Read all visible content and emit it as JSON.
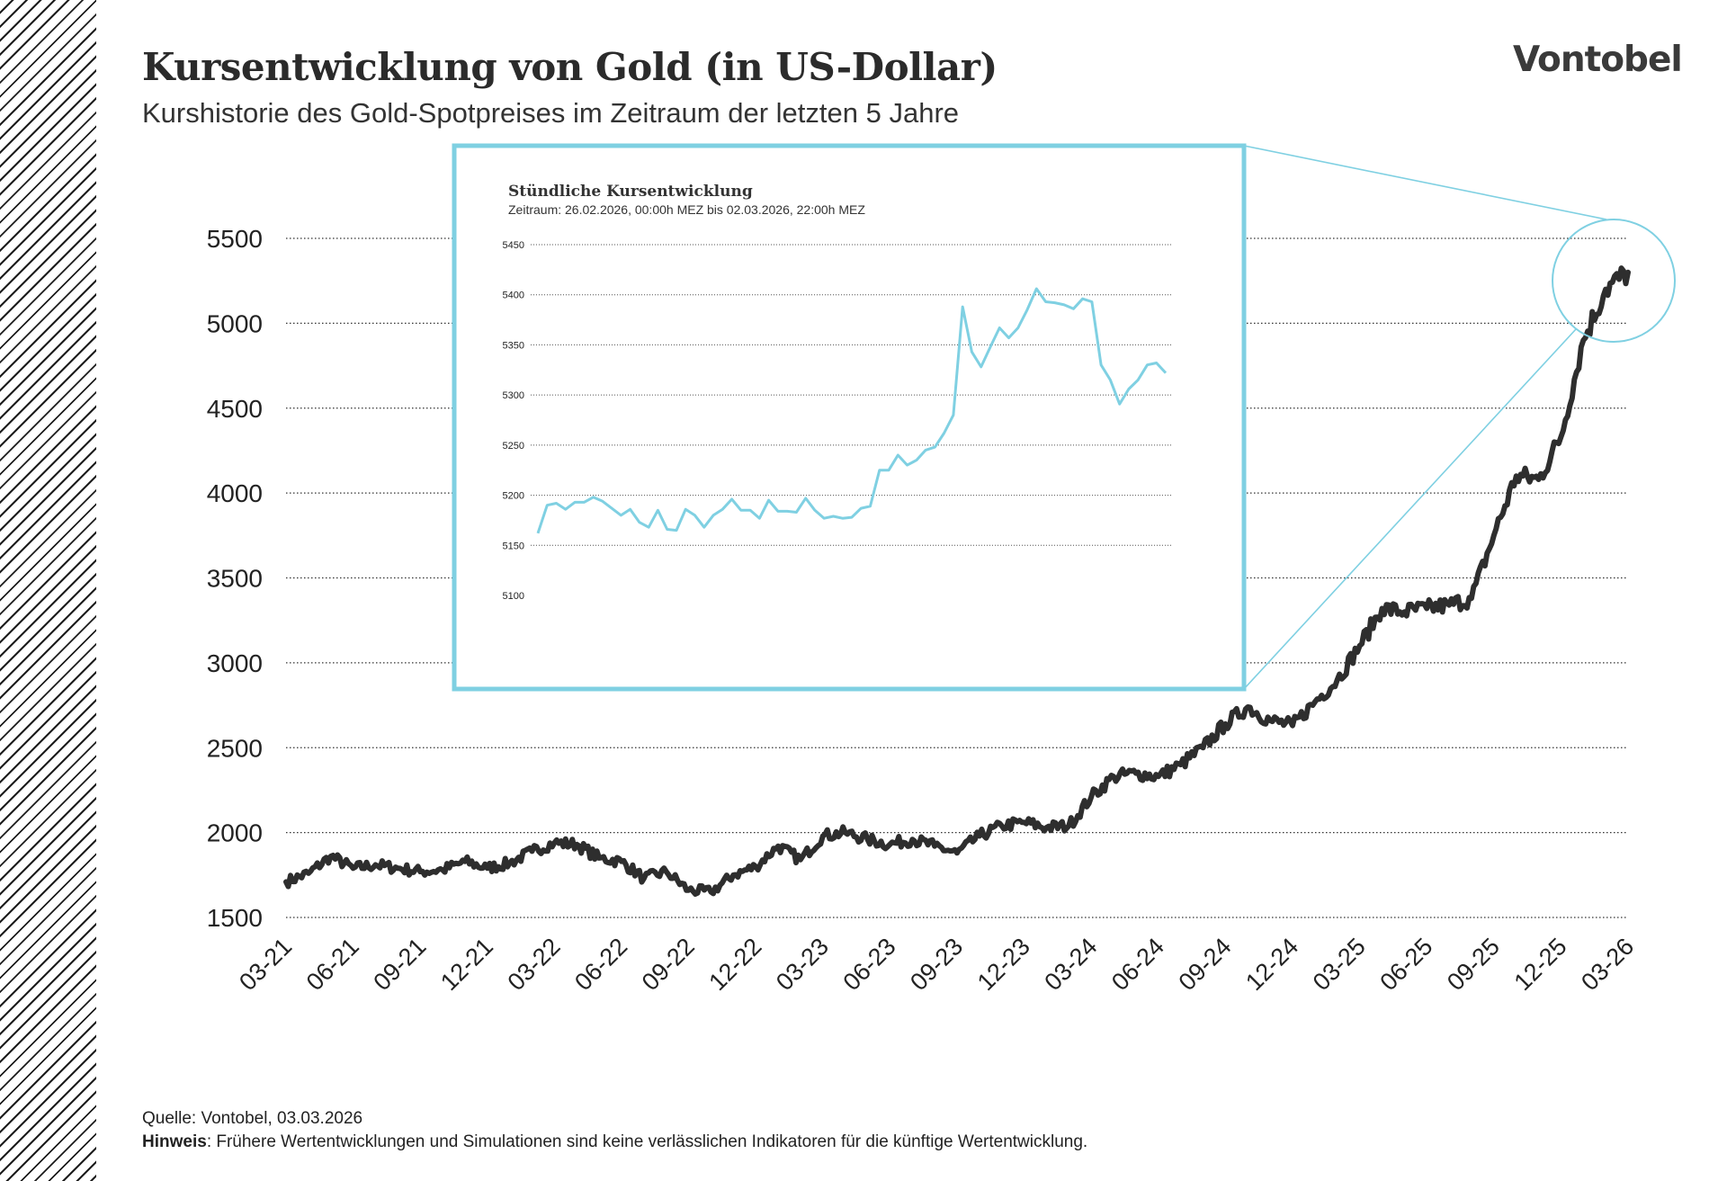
{
  "header": {
    "title": "Kursentwicklung von Gold (in US-Dollar)",
    "subtitle": "Kurshistorie des Gold-Spotpreises im Zeitraum der letzten 5 Jahre",
    "logo": "Vontobel"
  },
  "footer": {
    "source": "Quelle: Vontobel, 03.03.2026",
    "note_label": "Hinweis",
    "note_text": ": Frühere Wertentwicklungen und Simulationen sind keine verlässlichen Indikatoren für die künftige Wertentwicklung."
  },
  "colors": {
    "line": "#2e2e2e",
    "accent": "#7fd0e2",
    "grid": "#333333"
  },
  "chart_data": [
    {
      "type": "line",
      "title": "Kursentwicklung von Gold (in US-Dollar)",
      "subtitle": "Kurshistorie des Gold-Spotpreises im Zeitraum der letzten 5 Jahre",
      "xlabel": "",
      "ylabel": "",
      "ylim": [
        1500,
        5500
      ],
      "yticks": [
        1500,
        2000,
        2500,
        3000,
        3500,
        4000,
        4500,
        5000,
        5500
      ],
      "xticks": [
        "03-21",
        "06-21",
        "09-21",
        "12-21",
        "03-22",
        "06-22",
        "09-22",
        "12-22",
        "03-23",
        "06-23",
        "09-23",
        "12-23",
        "03-24",
        "06-24",
        "09-24",
        "12-24",
        "03-25",
        "06-25",
        "09-25",
        "12-25",
        "03-26"
      ],
      "grid": "horizontal dotted",
      "series": [
        {
          "x": [
            "03-21",
            "04-21",
            "05-21",
            "06-21",
            "07-21",
            "08-21",
            "09-21",
            "10-21",
            "11-21",
            "12-21",
            "01-22",
            "02-22",
            "03-22",
            "04-22",
            "05-22",
            "06-22",
            "07-22",
            "08-22",
            "09-22",
            "10-22",
            "11-22",
            "12-22",
            "01-23",
            "02-23",
            "03-23",
            "04-23",
            "05-23",
            "06-23",
            "07-23",
            "08-23",
            "09-23",
            "10-23",
            "11-23",
            "12-23",
            "01-24",
            "02-24",
            "03-24",
            "04-24",
            "05-24",
            "06-24",
            "07-24",
            "08-24",
            "09-24",
            "10-24",
            "11-24",
            "12-24",
            "01-25",
            "02-25",
            "03-25",
            "04-25",
            "05-25",
            "06-25",
            "07-25",
            "08-25",
            "09-25",
            "10-25",
            "11-25",
            "12-25",
            "01-26",
            "02-26",
            "03-26"
          ],
          "values": [
            1710,
            1760,
            1860,
            1790,
            1810,
            1790,
            1770,
            1780,
            1830,
            1790,
            1820,
            1890,
            1940,
            1930,
            1850,
            1830,
            1730,
            1770,
            1660,
            1650,
            1750,
            1800,
            1920,
            1840,
            1980,
            2000,
            1960,
            1930,
            1960,
            1920,
            1880,
            1980,
            2040,
            2060,
            2030,
            2040,
            2210,
            2330,
            2350,
            2330,
            2400,
            2500,
            2640,
            2740,
            2660,
            2630,
            2770,
            2900,
            3100,
            3320,
            3300,
            3320,
            3340,
            3380,
            3750,
            4100,
            4080,
            4330,
            4900,
            5200,
            5300
          ]
        }
      ]
    },
    {
      "type": "line",
      "title": "Stündliche Kursentwicklung",
      "subtitle": "Zeitraum: 26.02.2026, 00:00h MEZ bis 02.03.2026, 22:00h MEZ",
      "ylim": [
        5100,
        5450
      ],
      "yticks": [
        5100,
        5150,
        5200,
        5250,
        5300,
        5350,
        5400,
        5450
      ],
      "grid": "horizontal dotted",
      "series": [
        {
          "values": [
            5162,
            5190,
            5192,
            5186,
            5193,
            5193,
            5198,
            5194,
            5187,
            5180,
            5186,
            5173,
            5168,
            5185,
            5166,
            5165,
            5186,
            5180,
            5168,
            5180,
            5186,
            5196,
            5185,
            5185,
            5177,
            5195,
            5184,
            5184,
            5183,
            5197,
            5185,
            5177,
            5179,
            5177,
            5178,
            5187,
            5189,
            5225,
            5225,
            5240,
            5230,
            5235,
            5245,
            5248,
            5262,
            5280,
            5388,
            5343,
            5328,
            5348,
            5367,
            5357,
            5367,
            5385,
            5406,
            5393,
            5392,
            5390,
            5386,
            5396,
            5393,
            5330,
            5315,
            5291,
            5306,
            5315,
            5330,
            5332,
            5322
          ]
        }
      ]
    }
  ]
}
